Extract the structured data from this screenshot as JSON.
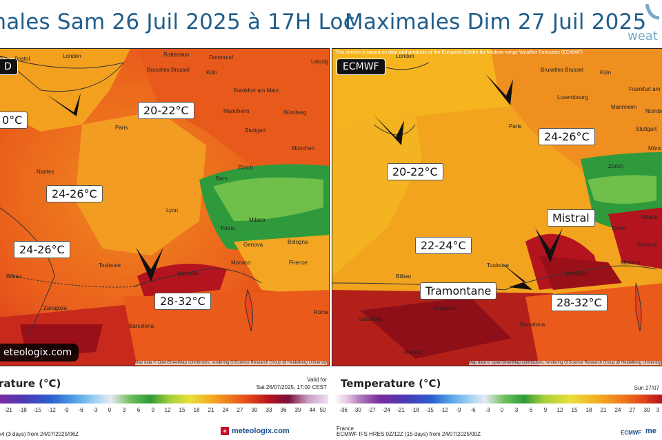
{
  "titles": {
    "left": "imales  Sam 26 Juil 2025 à 17H Loc",
    "right": "Maximales Dim 27 Juil 2025",
    "logo_text": "weat"
  },
  "left_map": {
    "badge": "D",
    "brand": "eteologix.com",
    "attribution": "Map data © OpenStreetMap contributors, rendering GIScience Research Group @ Heidelberg University",
    "labels": [
      "0°C",
      "20-22°C",
      "24-26°C",
      "24-26°C",
      "28-32°C"
    ],
    "cities": [
      "Bristol",
      "London",
      "Rotterdam",
      "Dortmund",
      "Leipzig",
      "Bruxelles Brussel",
      "Köln",
      "Frankfurt am Main",
      "Mannheim",
      "Nürnberg",
      "Paris",
      "Stuttgart",
      "München",
      "Nantes",
      "Bern",
      "Zürich",
      "Lyon",
      "Torino",
      "Milano",
      "Genova",
      "Bologna",
      "Firenze",
      "Monaco",
      "Marseille",
      "Toulouse",
      "Bilbao",
      "Zaragoza",
      "Barcelona",
      "Roma"
    ]
  },
  "right_map": {
    "badge": "ECMWF",
    "notice": "This service is based on data and products of the European Centre for Medium-range Weather Forecasts (ECMWF)",
    "attribution": "Map data © OpenStreetMap contributors, rendering GIScience Research Group @ Heidelberg University",
    "labels": [
      "20-22°C",
      "24-26°C",
      "Mistral",
      "22-24°C",
      "Tramontane",
      "28-32°C"
    ],
    "cities": [
      "London",
      "Bruxelles Brussel",
      "Köln",
      "Frankfurt am Main",
      "Luxembourg",
      "Mannheim",
      "Nürnberg",
      "Paris",
      "Stuttgart",
      "München",
      "Zürich",
      "Torino",
      "Milano",
      "Genova",
      "Monaco",
      "Marseille",
      "Toulouse",
      "Bilbao",
      "Zaragoza",
      "Barcelona",
      "Valladolid",
      "Madrid"
    ]
  },
  "legend_left": {
    "title": "rature (°C)",
    "valid_label": "Valid for",
    "valid_value": "Sat 26/07/2025, 17:00 CEST",
    "ticks": [
      "-21",
      "-18",
      "-15",
      "-12",
      "-9",
      "-6",
      "-3",
      "0",
      "3",
      "6",
      "9",
      "12",
      "15",
      "18",
      "21",
      "24",
      "27",
      "30",
      "33",
      "36",
      "39",
      "44",
      "50"
    ],
    "model": "x4 (3 days) from 24/07/2025/06Z",
    "brand": "meteologix.com"
  },
  "legend_right": {
    "title": "Temperature (°C)",
    "valid_value": "Sun 27/07",
    "ticks": [
      "-36",
      "-30",
      "-27",
      "-24",
      "-21",
      "-18",
      "-15",
      "-12",
      "-9",
      "-6",
      "-3",
      "0",
      "3",
      "6",
      "9",
      "12",
      "15",
      "18",
      "21",
      "24",
      "27",
      "30",
      "3"
    ],
    "region": "France",
    "model": "ECMWF IFS HRES 0Z/12Z (15 days) from 24/07/2025/00Z",
    "brand_a": "ECMWF",
    "brand_b": "me"
  },
  "colors": {
    "title": "#1f5d8a",
    "hot_deep": "#b3141e",
    "hot": "#e2461a",
    "warm": "#f07a1c",
    "mild": "#f4a71e",
    "cool": "#e9c42a",
    "alps_green": "#3aa23a"
  }
}
